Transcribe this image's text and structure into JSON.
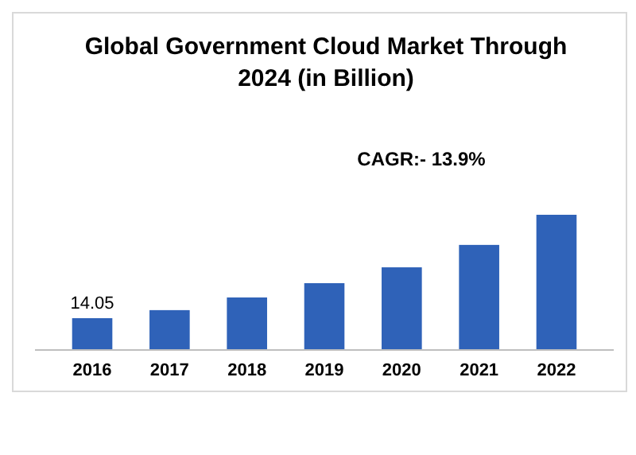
{
  "chart_data": {
    "type": "bar",
    "title": "Global Government Cloud Market Through\n2024 (in Billion)",
    "categories": [
      "2016",
      "2017",
      "2018",
      "2019",
      "2020",
      "2021",
      "2022"
    ],
    "values": [
      14.05,
      17.6,
      23.2,
      29.5,
      36.5,
      46.4,
      59.7
    ],
    "value_labels": [
      "14.05",
      null,
      null,
      null,
      null,
      null,
      null
    ],
    "color": "#2f62b8",
    "annotations": [
      "CAGR:- 13.9%"
    ],
    "grid": false
  }
}
